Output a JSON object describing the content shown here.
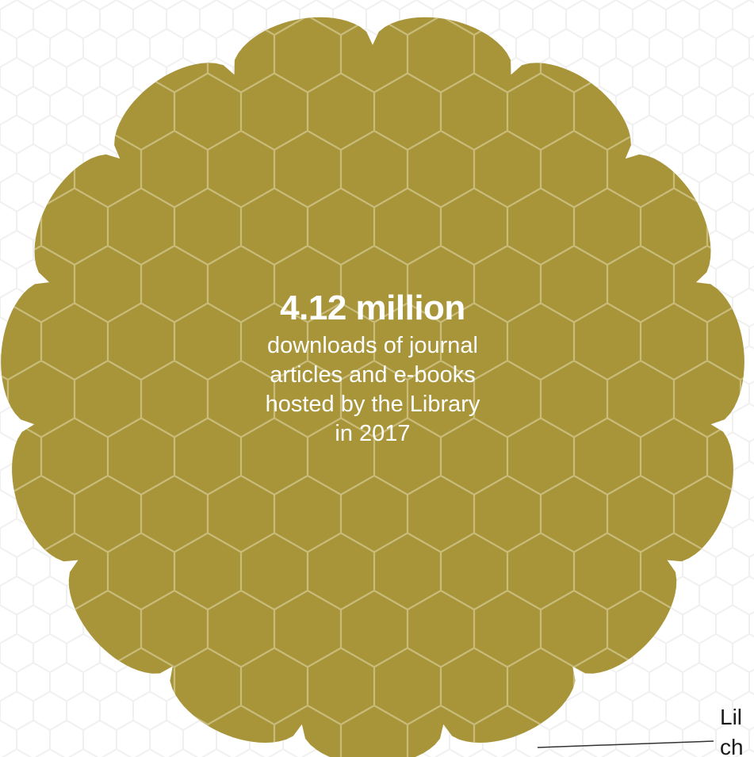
{
  "stat": {
    "value": "4.12 million",
    "description_lines": [
      "downloads of journal",
      "articles and e-books",
      "hosted by the Library",
      "in 2017"
    ]
  },
  "corner_label": {
    "lines": [
      "Lil",
      "ch"
    ]
  },
  "colors": {
    "blob": "#a8953a",
    "hex_line": "#c9bc7a",
    "bg_hex_line": "#f2f2f2",
    "text_on_blob": "#ffffff",
    "connector": "#333333"
  },
  "icons": [
    "honeycomb-pattern"
  ]
}
